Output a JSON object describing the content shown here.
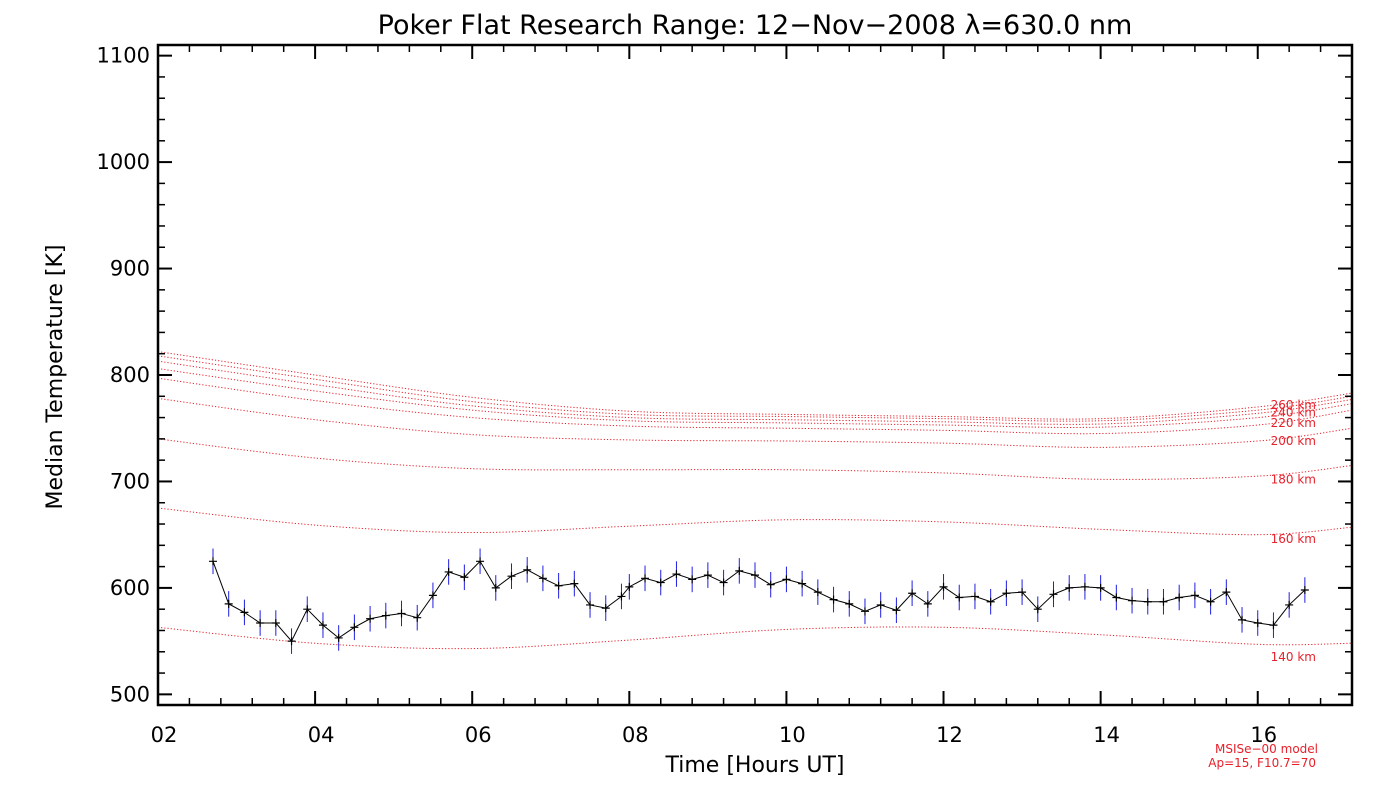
{
  "chart_data": {
    "type": "line",
    "title": "Poker Flat Research Range: 12−Nov−2008 λ=630.0 nm",
    "xlabel": "Time [Hours UT]",
    "ylabel": "Median Temperature [K]",
    "xlim": [
      2,
      17.2
    ],
    "ylim": [
      490,
      1110
    ],
    "x_ticks": [
      2,
      4,
      6,
      8,
      10,
      12,
      14,
      16
    ],
    "x_tick_labels": [
      "02",
      "04",
      "06",
      "08",
      "10",
      "12",
      "14",
      "16"
    ],
    "y_ticks": [
      500,
      600,
      700,
      800,
      900,
      1000,
      1100
    ],
    "y_tick_labels": [
      "500",
      "600",
      "700",
      "800",
      "900",
      "1000",
      "1100"
    ],
    "colors": {
      "measurement": "#000000",
      "error_bar": "#1f1fe0",
      "model": "#e8212b"
    },
    "measurement": {
      "x": [
        2.7,
        2.9,
        3.1,
        3.3,
        3.5,
        3.7,
        3.9,
        4.1,
        4.3,
        4.5,
        4.7,
        4.9,
        5.1,
        5.3,
        5.5,
        5.7,
        5.9,
        6.1,
        6.3,
        6.5,
        6.7,
        6.9,
        7.1,
        7.3,
        7.5,
        7.7,
        7.9,
        8.0,
        8.2,
        8.4,
        8.6,
        8.8,
        9.0,
        9.2,
        9.4,
        9.6,
        9.8,
        10.0,
        10.2,
        10.4,
        10.6,
        10.8,
        11.0,
        11.2,
        11.4,
        11.6,
        11.8,
        12.0,
        12.2,
        12.4,
        12.6,
        12.8,
        13.0,
        13.2,
        13.4,
        13.6,
        13.8,
        14.0,
        14.2,
        14.4,
        14.6,
        14.8,
        15.0,
        15.2,
        15.4,
        15.6,
        15.8,
        16.0,
        16.2,
        16.4,
        16.6
      ],
      "y": [
        625,
        585,
        577,
        567,
        567,
        550,
        580,
        565,
        553,
        563,
        571,
        574,
        576,
        572,
        593,
        615,
        610,
        625,
        600,
        611,
        617,
        609,
        602,
        604,
        584,
        581,
        592,
        601,
        609,
        605,
        613,
        608,
        612,
        605,
        616,
        612,
        603,
        608,
        604,
        596,
        589,
        585,
        578,
        584,
        579,
        595,
        585,
        601,
        591,
        592,
        587,
        595,
        596,
        580,
        594,
        600,
        601,
        600,
        591,
        588,
        587,
        587,
        591,
        593,
        587,
        596,
        570,
        567,
        565,
        584,
        598
      ],
      "error": 12
    },
    "model_series": [
      {
        "name": "140 km",
        "label_y": 535,
        "x": [
          2,
          4,
          6,
          8,
          10,
          12,
          14,
          16,
          17.2
        ],
        "y": [
          563,
          548,
          543,
          551,
          561,
          563,
          556,
          547,
          548
        ]
      },
      {
        "name": "160 km",
        "label_y": 646,
        "x": [
          2,
          4,
          6,
          8,
          10,
          12,
          14,
          16,
          17.2
        ],
        "y": [
          675,
          659,
          652,
          658,
          664,
          662,
          655,
          650,
          657
        ]
      },
      {
        "name": "180 km",
        "label_y": 702,
        "x": [
          2,
          4,
          6,
          8,
          10,
          12,
          14,
          16,
          17.2
        ],
        "y": [
          740,
          722,
          712,
          711,
          711,
          708,
          702,
          705,
          715
        ]
      },
      {
        "name": "200 km",
        "label_y": 738,
        "x": [
          2,
          4,
          6,
          8,
          10,
          12,
          14,
          16,
          17.2
        ],
        "y": [
          778,
          758,
          744,
          739,
          738,
          736,
          732,
          738,
          750
        ]
      },
      {
        "name": "220 km",
        "label_y": 755,
        "x": [
          2,
          4,
          6,
          8,
          10,
          12,
          14,
          16,
          17.2
        ],
        "y": [
          797,
          776,
          760,
          752,
          750,
          748,
          745,
          753,
          767
        ]
      },
      {
        "name": "240 km",
        "label_y": 765,
        "x": [
          2,
          4,
          6,
          8,
          10,
          12,
          14,
          16,
          17.2
        ],
        "y": [
          806,
          785,
          767,
          757,
          755,
          753,
          751,
          760,
          773
        ]
      },
      {
        "name": "260 km",
        "label_y": 772,
        "x": [
          2,
          4,
          6,
          8,
          10,
          12,
          14,
          16,
          17.2
        ],
        "y": [
          813,
          791,
          771,
          760,
          758,
          756,
          754,
          764,
          777
        ]
      },
      {
        "name": "",
        "label_y": null,
        "x": [
          2,
          4,
          6,
          8,
          10,
          12,
          14,
          16,
          17.2
        ],
        "y": [
          818,
          796,
          775,
          763,
          761,
          759,
          757,
          767,
          780
        ]
      },
      {
        "name": "",
        "label_y": null,
        "x": [
          2,
          4,
          6,
          8,
          10,
          12,
          14,
          16,
          17.2
        ],
        "y": [
          822,
          800,
          779,
          766,
          763,
          761,
          759,
          770,
          783
        ]
      }
    ],
    "annotations": [
      "MSISe−00 model",
      "Ap=15, F10.7=70"
    ]
  }
}
